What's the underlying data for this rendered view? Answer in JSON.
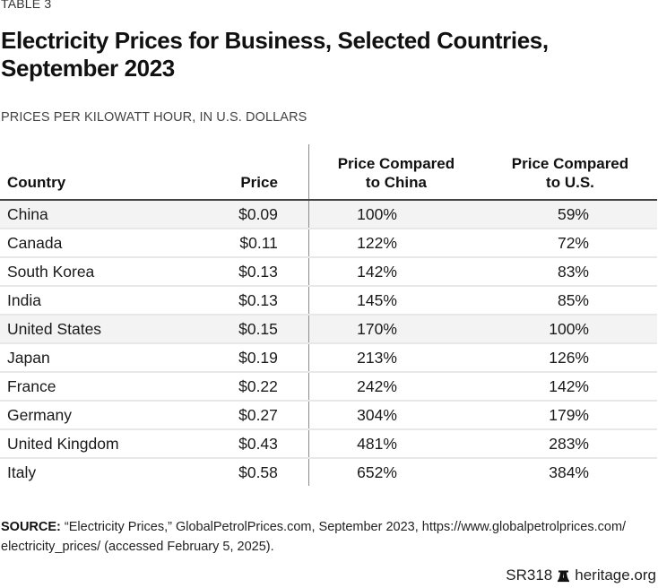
{
  "eyebrow": "TABLE 3",
  "title": "Electricity Prices for Business, Selected Countries, September 2023",
  "subtitle": "PRICES PER KILOWATT HOUR, IN U.S. DOLLARS",
  "table": {
    "headers": [
      "Country",
      "Price",
      "Price Compared to China",
      "Price Compared to U.S."
    ],
    "rows": [
      {
        "country": "China",
        "price": "$0.09",
        "vs_china": "100%",
        "vs_us": "59%",
        "highlight": true
      },
      {
        "country": "Canada",
        "price": "$0.11",
        "vs_china": "122%",
        "vs_us": "72%",
        "highlight": false
      },
      {
        "country": "South Korea",
        "price": "$0.13",
        "vs_china": "142%",
        "vs_us": "83%",
        "highlight": false
      },
      {
        "country": "India",
        "price": "$0.13",
        "vs_china": "145%",
        "vs_us": "85%",
        "highlight": false
      },
      {
        "country": "United States",
        "price": "$0.15",
        "vs_china": "170%",
        "vs_us": "100%",
        "highlight": true
      },
      {
        "country": "Japan",
        "price": "$0.19",
        "vs_china": "213%",
        "vs_us": "126%",
        "highlight": false
      },
      {
        "country": "France",
        "price": "$0.22",
        "vs_china": "242%",
        "vs_us": "142%",
        "highlight": false
      },
      {
        "country": "Germany",
        "price": "$0.27",
        "vs_china": "304%",
        "vs_us": "179%",
        "highlight": false
      },
      {
        "country": "United Kingdom",
        "price": "$0.43",
        "vs_china": "481%",
        "vs_us": "283%",
        "highlight": false
      },
      {
        "country": "Italy",
        "price": "$0.58",
        "vs_china": "652%",
        "vs_us": "384%",
        "highlight": false
      }
    ]
  },
  "source": {
    "label": "SOURCE:",
    "text": " “Electricity Prices,” GlobalPetrolPrices.com, September 2023, https://www.globalpetrolprices.com/ electricity_prices/ (accessed February 5, 2025)."
  },
  "footer": {
    "report_id": "SR318",
    "icon": "liberty-bell-icon",
    "site": "heritage.org"
  },
  "colors": {
    "highlight_row": "#f3f3f3",
    "row_separator": "#e8e8e8",
    "header_rule": "#444444"
  }
}
